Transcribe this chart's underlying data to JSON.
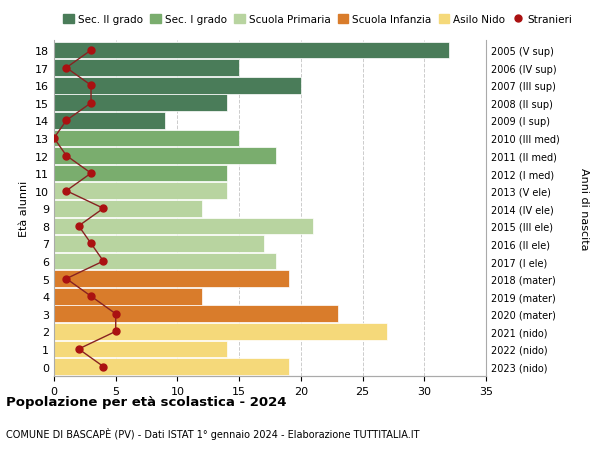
{
  "ages": [
    18,
    17,
    16,
    15,
    14,
    13,
    12,
    11,
    10,
    9,
    8,
    7,
    6,
    5,
    4,
    3,
    2,
    1,
    0
  ],
  "right_labels": [
    "2005 (V sup)",
    "2006 (IV sup)",
    "2007 (III sup)",
    "2008 (II sup)",
    "2009 (I sup)",
    "2010 (III med)",
    "2011 (II med)",
    "2012 (I med)",
    "2013 (V ele)",
    "2014 (IV ele)",
    "2015 (III ele)",
    "2016 (II ele)",
    "2017 (I ele)",
    "2018 (mater)",
    "2019 (mater)",
    "2020 (mater)",
    "2021 (nido)",
    "2022 (nido)",
    "2023 (nido)"
  ],
  "bar_values": [
    32,
    15,
    20,
    14,
    9,
    15,
    18,
    14,
    14,
    12,
    21,
    17,
    18,
    19,
    12,
    23,
    27,
    14,
    19
  ],
  "bar_colors": [
    "#4a7c59",
    "#4a7c59",
    "#4a7c59",
    "#4a7c59",
    "#4a7c59",
    "#7aad6e",
    "#7aad6e",
    "#7aad6e",
    "#b8d4a0",
    "#b8d4a0",
    "#b8d4a0",
    "#b8d4a0",
    "#b8d4a0",
    "#d97c2b",
    "#d97c2b",
    "#d97c2b",
    "#f5d97a",
    "#f5d97a",
    "#f5d97a"
  ],
  "stranieri_values": [
    3,
    1,
    3,
    3,
    1,
    0,
    1,
    3,
    1,
    4,
    2,
    3,
    4,
    1,
    3,
    5,
    5,
    2,
    4
  ],
  "legend_labels": [
    "Sec. II grado",
    "Sec. I grado",
    "Scuola Primaria",
    "Scuola Infanzia",
    "Asilo Nido",
    "Stranieri"
  ],
  "legend_colors": [
    "#4a7c59",
    "#7aad6e",
    "#b8d4a0",
    "#d97c2b",
    "#f5d97a",
    "#cc2222"
  ],
  "title": "Popolazione per età scolastica - 2024",
  "subtitle": "COMUNE DI BASCAPÈ (PV) - Dati ISTAT 1° gennaio 2024 - Elaborazione TUTTITALIA.IT",
  "ylabel_left": "Età alunni",
  "ylabel_right": "Anni di nascita",
  "xlim": [
    0,
    35
  ],
  "background_color": "#ffffff",
  "plot_bg_color": "#f5f5f5",
  "grid_color": "#cccccc",
  "stranieri_color": "#aa1111",
  "stranieri_line_color": "#882222"
}
